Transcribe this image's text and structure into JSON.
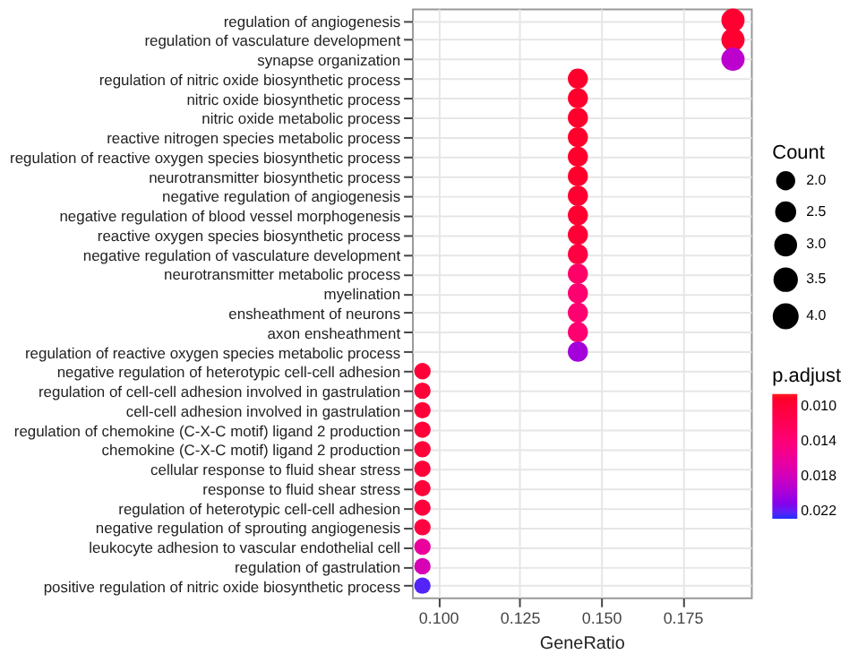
{
  "chart_data": {
    "type": "bubble",
    "orientation": "horizontal",
    "xlabel": "GeneRatio",
    "legend_title": "Count",
    "clabel": "p.adjust",
    "grid": true,
    "categories": [
      "regulation of angiogenesis",
      "regulation of vasculature development",
      "synapse organization",
      "regulation of nitric oxide biosynthetic process",
      "nitric oxide biosynthetic process",
      "nitric oxide metabolic process",
      "reactive nitrogen species metabolic process",
      "regulation of reactive oxygen species biosynthetic process",
      "neurotransmitter biosynthetic process",
      "negative regulation of angiogenesis",
      "negative regulation of blood vessel morphogenesis",
      "reactive oxygen species biosynthetic process",
      "negative regulation of vasculature development",
      "neurotransmitter metabolic process",
      "myelination",
      "ensheathment of neurons",
      "axon ensheathment",
      "regulation of reactive oxygen species metabolic process",
      "negative regulation of heterotypic cell-cell adhesion",
      "regulation of cell-cell adhesion involved in gastrulation",
      "cell-cell adhesion involved in gastrulation",
      "regulation of chemokine (C-X-C motif) ligand 2 production",
      "chemokine (C-X-C motif) ligand 2 production",
      "cellular response to fluid shear stress",
      "response to fluid shear stress",
      "regulation of heterotypic cell-cell adhesion",
      "negative regulation of sprouting angiogenesis",
      "leukocyte adhesion to vascular endothelial cell",
      "regulation of gastrulation",
      "positive regulation of nitric oxide biosynthetic process"
    ],
    "values": [
      0.1905,
      0.1905,
      0.1905,
      0.1429,
      0.1429,
      0.1429,
      0.1429,
      0.1429,
      0.1429,
      0.1429,
      0.1429,
      0.1429,
      0.1429,
      0.1429,
      0.1429,
      0.1429,
      0.1429,
      0.1429,
      0.0952,
      0.0952,
      0.0952,
      0.0952,
      0.0952,
      0.0952,
      0.0952,
      0.0952,
      0.0952,
      0.0952,
      0.0952,
      0.0952
    ],
    "sizes": [
      4,
      4,
      4,
      3,
      3,
      3,
      3,
      3,
      3,
      3,
      3,
      3,
      3,
      3,
      3,
      3,
      3,
      3,
      2,
      2,
      2,
      2,
      2,
      2,
      2,
      2,
      2,
      2,
      2,
      2
    ],
    "cvalues": [
      0.0095,
      0.0095,
      0.019,
      0.0092,
      0.0092,
      0.0092,
      0.0092,
      0.0092,
      0.0092,
      0.0095,
      0.0095,
      0.0098,
      0.0105,
      0.013,
      0.0135,
      0.0135,
      0.0135,
      0.02,
      0.01,
      0.01,
      0.01,
      0.01,
      0.01,
      0.01,
      0.01,
      0.0102,
      0.0105,
      0.016,
      0.0175,
      0.0222
    ],
    "xlim": [
      0.092,
      0.196
    ],
    "xticks": [
      {
        "value": 0.1,
        "label": "0.100"
      },
      {
        "value": 0.125,
        "label": "0.125"
      },
      {
        "value": 0.15,
        "label": "0.150"
      },
      {
        "value": 0.175,
        "label": "0.175"
      }
    ],
    "size_legend": [
      {
        "value": 2,
        "label": "2.0"
      },
      {
        "value": 2.5,
        "label": "2.5"
      },
      {
        "value": 3,
        "label": "3.0"
      },
      {
        "value": 3.5,
        "label": "3.5"
      },
      {
        "value": 4,
        "label": "4.0"
      }
    ],
    "clim": [
      0.0085,
      0.0228
    ],
    "cticks": [
      {
        "value": 0.01,
        "label": "0.010"
      },
      {
        "value": 0.014,
        "label": "0.014"
      },
      {
        "value": 0.018,
        "label": "0.018"
      },
      {
        "value": 0.022,
        "label": "0.022"
      }
    ]
  }
}
